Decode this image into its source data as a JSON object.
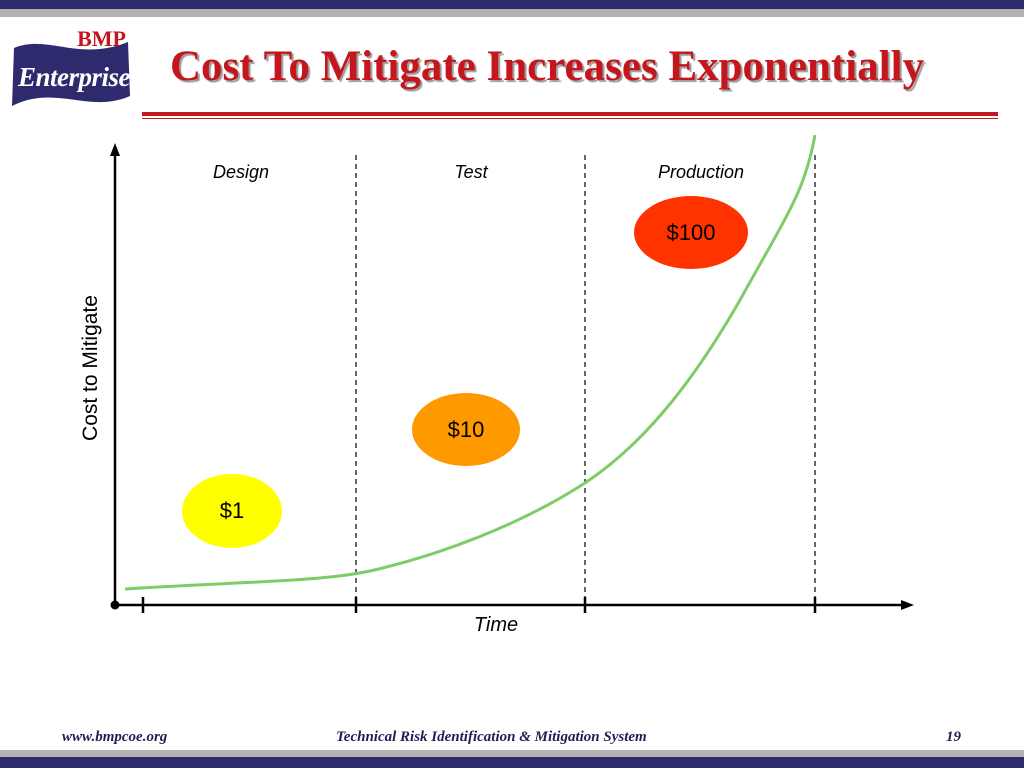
{
  "logo": {
    "top_text": "BMP",
    "main_text": "Enterprise"
  },
  "title": "Cost To Mitigate Increases Exponentially",
  "diagram": {
    "phases": [
      "Design",
      "Test",
      "Production"
    ],
    "y_axis_label": "Cost to Mitigate",
    "x_axis_label": "Time",
    "costs": [
      {
        "label": "$1",
        "color": "#ffff00"
      },
      {
        "label": "$10",
        "color": "#ff9900"
      },
      {
        "label": "$100",
        "color": "#ff3300"
      }
    ],
    "curve_color": "#7dcc68"
  },
  "footer": {
    "website": "www.bmpcoe.org",
    "system_name": "Technical Risk Identification & Mitigation System",
    "page_number": "19"
  },
  "colors": {
    "navy": "#2e2a6e",
    "red": "#c4161c",
    "gray": "#b3b3b3"
  }
}
